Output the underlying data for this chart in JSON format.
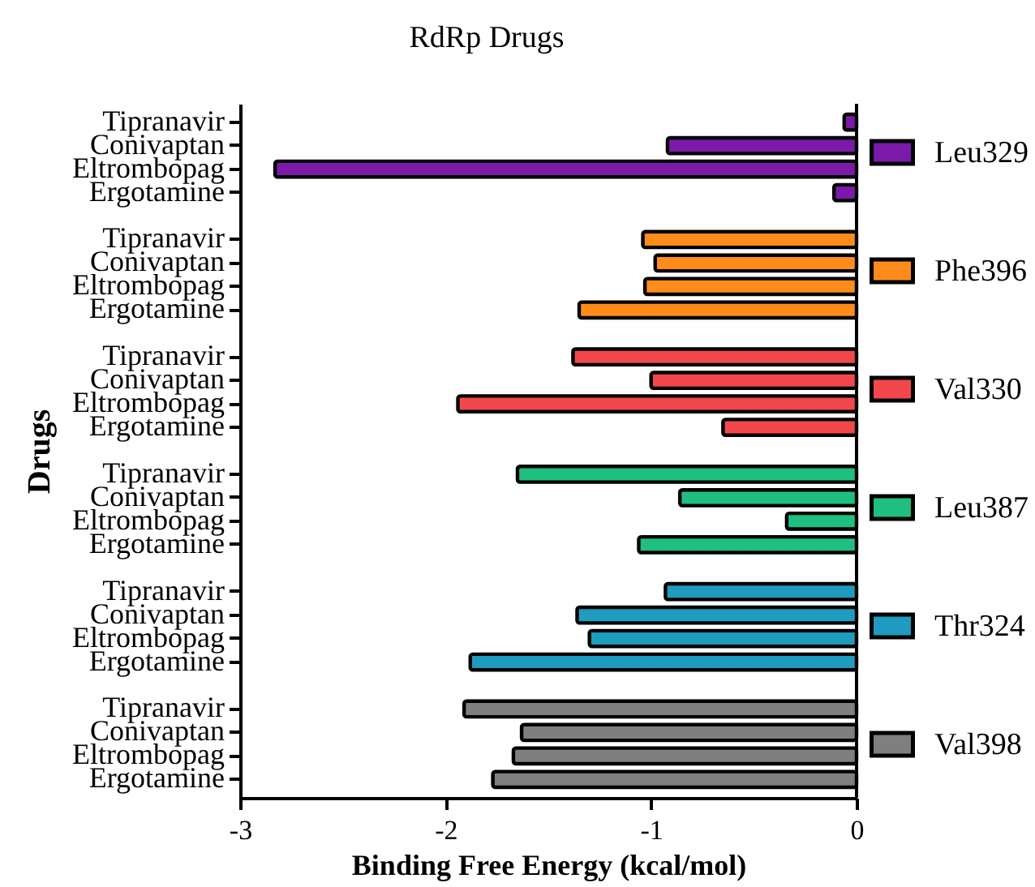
{
  "chart_data": {
    "type": "bar",
    "orientation": "horizontal",
    "title": "RdRp  Drugs",
    "xlabel": "Binding Free Energy (kcal/mol)",
    "ylabel": "Drugs",
    "categories": [
      "Tipranavir",
      "Conivaptan",
      "Eltrombopag",
      "Ergotamine",
      null,
      "Tipranavir",
      "Conivaptan",
      "Eltrombopag",
      "Ergotamine",
      null,
      "Tipranavir",
      "Conivaptan",
      "Eltrombopag",
      "Ergotamine",
      null,
      "Tipranavir",
      "Conivaptan",
      "Eltrombopag",
      "Ergotamine",
      null,
      "Tipranavir",
      "Conivaptan",
      "Eltrombopag",
      "Ergotamine",
      null,
      "Tipranavir",
      "Conivaptan",
      "Eltrombopag",
      "Ergotamine"
    ],
    "series": [
      {
        "name": "Leu329",
        "color": "#7b1aa8",
        "values": [
          -0.06,
          -0.92,
          -2.83,
          -0.11,
          null,
          null,
          null,
          null,
          null,
          null,
          null,
          null,
          null,
          null,
          null,
          null,
          null,
          null,
          null,
          null,
          null,
          null,
          null,
          null,
          null,
          null,
          null,
          null,
          null
        ]
      },
      {
        "name": "Phe396",
        "color": "#ff8c1a",
        "values": [
          null,
          null,
          null,
          null,
          null,
          -1.04,
          -0.98,
          -1.03,
          -1.35,
          null,
          null,
          null,
          null,
          null,
          null,
          null,
          null,
          null,
          null,
          null,
          null,
          null,
          null,
          null,
          null,
          null,
          null,
          null,
          null
        ]
      },
      {
        "name": "Val330",
        "color": "#f2484b",
        "values": [
          null,
          null,
          null,
          null,
          null,
          null,
          null,
          null,
          null,
          null,
          -1.38,
          -1.0,
          -1.94,
          -0.65,
          null,
          null,
          null,
          null,
          null,
          null,
          null,
          null,
          null,
          null,
          null,
          null,
          null,
          null,
          null
        ]
      },
      {
        "name": "Leu387",
        "color": "#1fbf7f",
        "values": [
          null,
          null,
          null,
          null,
          null,
          null,
          null,
          null,
          null,
          null,
          null,
          null,
          null,
          null,
          null,
          -1.65,
          -0.86,
          -0.34,
          -1.06,
          null,
          null,
          null,
          null,
          null,
          null,
          null,
          null,
          null,
          null
        ]
      },
      {
        "name": "Thr324",
        "color": "#1e9bbf",
        "values": [
          null,
          null,
          null,
          null,
          null,
          null,
          null,
          null,
          null,
          null,
          null,
          null,
          null,
          null,
          null,
          null,
          null,
          null,
          null,
          null,
          -0.93,
          -1.36,
          -1.3,
          -1.88,
          null,
          null,
          null,
          null,
          null
        ]
      },
      {
        "name": "Val398",
        "color": "#7f7f7f",
        "values": [
          null,
          null,
          null,
          null,
          null,
          null,
          null,
          null,
          null,
          null,
          null,
          null,
          null,
          null,
          null,
          null,
          null,
          null,
          null,
          null,
          null,
          null,
          null,
          null,
          null,
          -1.91,
          -1.63,
          -1.67,
          -1.77
        ]
      }
    ],
    "xlim": [
      -3,
      0
    ],
    "xticks": [
      -3,
      -2,
      -1,
      0
    ],
    "ref_lines": [
      {
        "axis": "x",
        "value": 0
      }
    ],
    "legend": "right",
    "grid": false
  }
}
